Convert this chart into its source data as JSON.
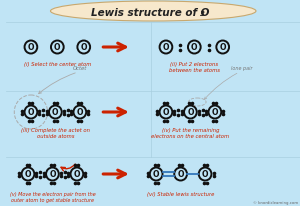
{
  "bg_color": "#c0e4f5",
  "title_bg": "#f7e8cc",
  "title_border": "#c8a86e",
  "title_text": "Lewis structure of O",
  "title_sub": "3",
  "dot_color": "#111111",
  "circle_color": "#111111",
  "red": "#cc2200",
  "blue": "#3377bb",
  "gray": "#888888",
  "watermark": "© knordislearning.com",
  "divider_color": "#a8cfe0"
}
